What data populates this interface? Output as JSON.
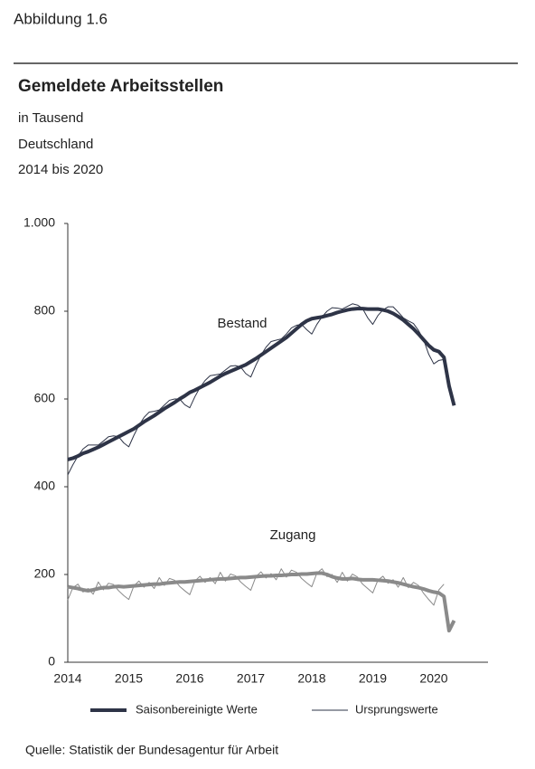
{
  "header": "Abbildung 1.6",
  "chart_data": {
    "type": "line",
    "title": "Gemeldete Arbeitsstellen",
    "subtitles": [
      "in Tausend",
      "Deutschland",
      "2014 bis 2020"
    ],
    "categories": [
      "2014",
      null,
      null,
      null,
      null,
      null,
      null,
      null,
      null,
      null,
      null,
      null,
      "2015",
      null,
      null,
      null,
      null,
      null,
      null,
      null,
      null,
      null,
      null,
      null,
      "2016",
      null,
      null,
      null,
      null,
      null,
      null,
      null,
      null,
      null,
      null,
      null,
      "2017",
      null,
      null,
      null,
      null,
      null,
      null,
      null,
      null,
      null,
      null,
      null,
      "2018",
      null,
      null,
      null,
      null,
      null,
      null,
      null,
      null,
      null,
      null,
      null,
      "2019",
      null,
      null,
      null,
      null,
      null,
      null,
      null,
      null,
      null,
      null,
      null,
      "2020",
      null,
      null,
      null,
      null
    ],
    "series": [
      {
        "name": "Bestand",
        "color": "#2e3447",
        "values": [
          462,
          465,
          470,
          476,
          480,
          485,
          490,
          496,
          502,
          508,
          514,
          520,
          526,
          532,
          540,
          548,
          555,
          562,
          570,
          578,
          585,
          592,
          600,
          607,
          615,
          620,
          626,
          632,
          638,
          645,
          652,
          658,
          663,
          668,
          673,
          678,
          685,
          692,
          700,
          708,
          716,
          724,
          732,
          740,
          750,
          760,
          770,
          778,
          783,
          785,
          787,
          790,
          793,
          797,
          800,
          803,
          805,
          806,
          806,
          805,
          805,
          805,
          803,
          800,
          795,
          788,
          780,
          770,
          760,
          748,
          735,
          722,
          712,
          708,
          695,
          630,
          585
        ],
        "raw_values": [
          427,
          450,
          470,
          486,
          495,
          495,
          495,
          504,
          514,
          516,
          514,
          500,
          491,
          517,
          540,
          558,
          570,
          572,
          575,
          586,
          597,
          600,
          600,
          587,
          580,
          605,
          626,
          642,
          653,
          655,
          657,
          666,
          675,
          676,
          673,
          658,
          650,
          677,
          700,
          718,
          731,
          734,
          737,
          748,
          762,
          768,
          770,
          758,
          748,
          770,
          787,
          800,
          808,
          807,
          805,
          811,
          817,
          814,
          806,
          785,
          770,
          790,
          803,
          810,
          810,
          798,
          785,
          778,
          772,
          756,
          735,
          702,
          680,
          688,
          690,
          null,
          null
        ]
      },
      {
        "name": "Zugang",
        "color": "#8a8a8a",
        "values": [
          172,
          170,
          168,
          165,
          163,
          165,
          168,
          170,
          170,
          172,
          173,
          172,
          173,
          174,
          175,
          176,
          177,
          178,
          178,
          180,
          181,
          182,
          183,
          183,
          184,
          185,
          186,
          187,
          188,
          189,
          190,
          190,
          191,
          192,
          193,
          193,
          194,
          195,
          196,
          197,
          197,
          198,
          198,
          199,
          200,
          200,
          201,
          201,
          202,
          203,
          203,
          200,
          195,
          192,
          190,
          190,
          191,
          189,
          188,
          188,
          188,
          187,
          186,
          185,
          183,
          181,
          178,
          175,
          172,
          170,
          167,
          163,
          160,
          158,
          150,
          72,
          95
        ],
        "raw_values": [
          142,
          170,
          178,
          160,
          168,
          155,
          183,
          165,
          180,
          177,
          163,
          152,
          143,
          174,
          185,
          171,
          182,
          168,
          193,
          175,
          191,
          187,
          173,
          163,
          154,
          185,
          196,
          182,
          193,
          179,
          205,
          185,
          201,
          197,
          183,
          173,
          164,
          195,
          206,
          192,
          202,
          188,
          213,
          194,
          210,
          205,
          191,
          181,
          172,
          203,
          213,
          195,
          200,
          182,
          205,
          185,
          201,
          194,
          178,
          168,
          158,
          187,
          196,
          180,
          188,
          171,
          193,
          170,
          182,
          175,
          157,
          143,
          130,
          165,
          178,
          null,
          null
        ]
      }
    ],
    "legend": [
      "Saisonbereinigte Werte",
      "Ursprungswerte"
    ],
    "ylim": [
      0,
      1000
    ],
    "yticks": [
      0,
      200,
      400,
      600,
      800,
      {
        "value": 1000,
        "label": "1.000"
      }
    ],
    "source": "Quelle: Statistik der Bundesagentur für Arbeit"
  }
}
